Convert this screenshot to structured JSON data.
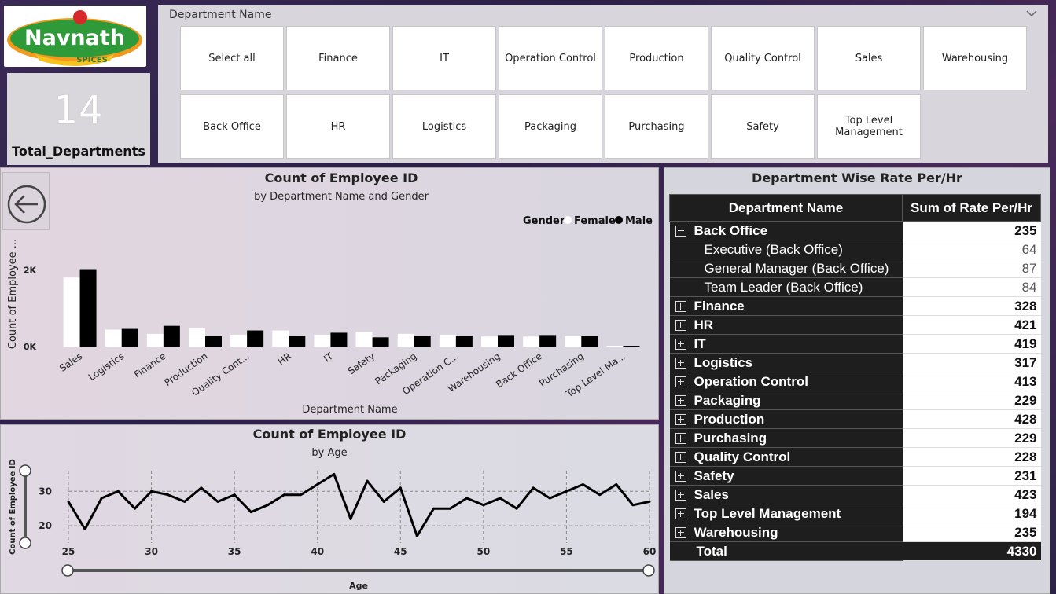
{
  "logo": {
    "brand": "Navnath",
    "tagline": "SPICES"
  },
  "kpi": {
    "value": "14",
    "label": "Total_Departments"
  },
  "slicer": {
    "title": "Department Name",
    "options": [
      "Select all",
      "Finance",
      "IT",
      "Operation Control",
      "Production",
      "Quality Control",
      "Sales",
      "Warehousing",
      "Back Office",
      "HR",
      "Logistics",
      "Packaging",
      "Purchasing",
      "Safety",
      "Top Level Management"
    ]
  },
  "bar_chart": {
    "title": "Count of Employee ID",
    "subtitle": "by Department Name and Gender",
    "legend_title": "Gender"
  },
  "line_chart": {
    "title": "Count of Employee ID",
    "subtitle": "by Age"
  },
  "chart_data": [
    {
      "type": "bar",
      "title": "Count of Employee ID",
      "subtitle": "by Department Name and Gender",
      "xlabel": "Department Name",
      "ylabel": "Count of Employee ...",
      "legend_title": "Gender",
      "legend_position": "top-right",
      "categories": [
        "Sales",
        "Logistics",
        "Finance",
        "Production",
        "Quality Cont...",
        "HR",
        "IT",
        "Safety",
        "Packaging",
        "Operation C...",
        "Warehousing",
        "Back Office",
        "Purchasing",
        "Top Level Ma..."
      ],
      "series": [
        {
          "name": "Female",
          "color": "#ffffff",
          "values": [
            1800,
            440,
            330,
            470,
            310,
            420,
            310,
            380,
            330,
            310,
            260,
            260,
            270,
            20
          ]
        },
        {
          "name": "Male",
          "color": "#000000",
          "values": [
            2020,
            460,
            540,
            270,
            420,
            280,
            360,
            240,
            270,
            270,
            300,
            300,
            270,
            20
          ]
        }
      ],
      "y_ticks": [
        "0K",
        "2K"
      ],
      "ylim": [
        0,
        2400
      ],
      "grid": false
    },
    {
      "type": "line",
      "title": "Count of Employee ID",
      "subtitle": "by Age",
      "xlabel": "Age",
      "ylabel": "Count of Employee ID",
      "x": [
        25,
        26,
        27,
        28,
        29,
        30,
        31,
        32,
        33,
        34,
        35,
        36,
        37,
        38,
        39,
        40,
        41,
        42,
        43,
        44,
        45,
        46,
        47,
        48,
        49,
        50,
        51,
        52,
        53,
        54,
        55,
        56,
        57,
        58,
        59,
        60
      ],
      "y": [
        27,
        19,
        28,
        30,
        25,
        30,
        29,
        27,
        31,
        27,
        29,
        24,
        26,
        29,
        29,
        32,
        35,
        22,
        33,
        27,
        31,
        17,
        25,
        25,
        28,
        26,
        28,
        25,
        31,
        28,
        30,
        32,
        29,
        32,
        26,
        27
      ],
      "x_ticks": [
        25,
        30,
        35,
        40,
        45,
        50,
        55,
        60
      ],
      "y_ticks": [
        20,
        30
      ],
      "xlim": [
        25,
        60
      ],
      "ylim": [
        15,
        36
      ],
      "color": "#000000",
      "grid": "dashed"
    }
  ],
  "table": {
    "title": "Department Wise Rate Per/Hr",
    "headers": [
      "Department Name",
      "Sum of Rate Per/Hr"
    ],
    "rows": [
      {
        "name": "Back Office",
        "value": "235",
        "level": "parent",
        "expanded": true
      },
      {
        "name": "Executive (Back Office)",
        "value": "64",
        "level": "child"
      },
      {
        "name": "General Manager (Back Office)",
        "value": "87",
        "level": "child"
      },
      {
        "name": "Team Leader (Back Office)",
        "value": "84",
        "level": "child"
      },
      {
        "name": "Finance",
        "value": "328",
        "level": "parent",
        "expanded": false
      },
      {
        "name": "HR",
        "value": "421",
        "level": "parent",
        "expanded": false
      },
      {
        "name": "IT",
        "value": "419",
        "level": "parent",
        "expanded": false
      },
      {
        "name": "Logistics",
        "value": "317",
        "level": "parent",
        "expanded": false
      },
      {
        "name": "Operation Control",
        "value": "413",
        "level": "parent",
        "expanded": false
      },
      {
        "name": "Packaging",
        "value": "229",
        "level": "parent",
        "expanded": false
      },
      {
        "name": "Production",
        "value": "428",
        "level": "parent",
        "expanded": false
      },
      {
        "name": "Purchasing",
        "value": "229",
        "level": "parent",
        "expanded": false
      },
      {
        "name": "Quality Control",
        "value": "228",
        "level": "parent",
        "expanded": false
      },
      {
        "name": "Safety",
        "value": "231",
        "level": "parent",
        "expanded": false
      },
      {
        "name": "Sales",
        "value": "423",
        "level": "parent",
        "expanded": false
      },
      {
        "name": "Top Level Management",
        "value": "194",
        "level": "parent",
        "expanded": false
      },
      {
        "name": "Warehousing",
        "value": "235",
        "level": "parent",
        "expanded": false
      }
    ],
    "total": {
      "name": "Total",
      "value": "4330"
    }
  },
  "icons": {
    "back": "arrow-left-circle-icon",
    "dropdown": "chevron-down-icon",
    "expand": "plus-box-icon",
    "collapse": "minus-box-icon"
  },
  "colors": {
    "background": "#2e2448",
    "table_dark": "#1e1e1e",
    "logo_green": "#2e9a3a",
    "logo_orange": "#f39a1e"
  }
}
